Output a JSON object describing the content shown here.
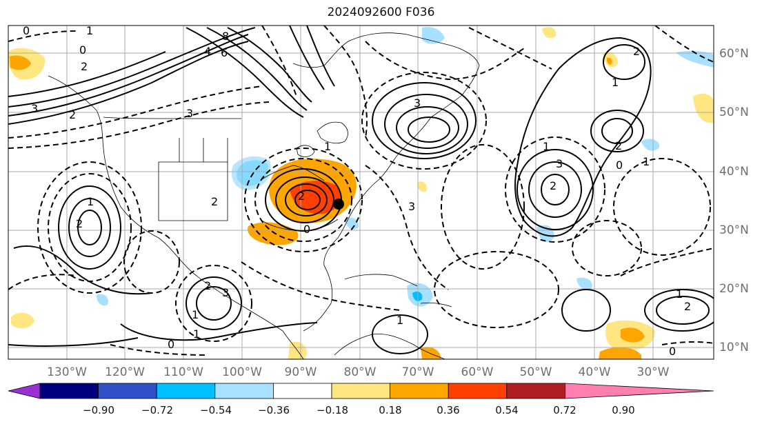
{
  "title": "2024092600 F036",
  "lon_labels": [
    "130°W",
    "120°W",
    "110°W",
    "100°W",
    "90°W",
    "80°W",
    "70°W",
    "60°W",
    "50°W",
    "40°W",
    "30°W"
  ],
  "lat_labels": [
    "60°N",
    "50°N",
    "40°N",
    "30°N",
    "20°N",
    "10°N"
  ],
  "colorbar": {
    "colors": [
      "#9b30d0",
      "#00007f",
      "#3050c8",
      "#00bfff",
      "#a8e0ff",
      "#ffffff",
      "#ffe680",
      "#ffa500",
      "#ff4000",
      "#b02020",
      "#ff80b0"
    ],
    "ticks": [
      "−0.90",
      "−0.72",
      "−0.54",
      "−0.36",
      "−0.18",
      "0.18",
      "0.36",
      "0.54",
      "0.72",
      "0.90"
    ]
  },
  "contour_labels": [
    "0",
    "1",
    "2",
    "3",
    "4",
    "6",
    "8",
    "0",
    "2",
    "3",
    "1",
    "2",
    "3",
    "2",
    "0",
    "1",
    "2",
    "3",
    "1",
    "2",
    "3",
    "0",
    "1",
    "2",
    "3",
    "1",
    "0",
    "1",
    "1",
    "2",
    "2",
    "1",
    "2",
    "0",
    "1"
  ],
  "colors": {
    "grid": "#aaaaaa",
    "land": "#000000",
    "frame": "#000000"
  }
}
